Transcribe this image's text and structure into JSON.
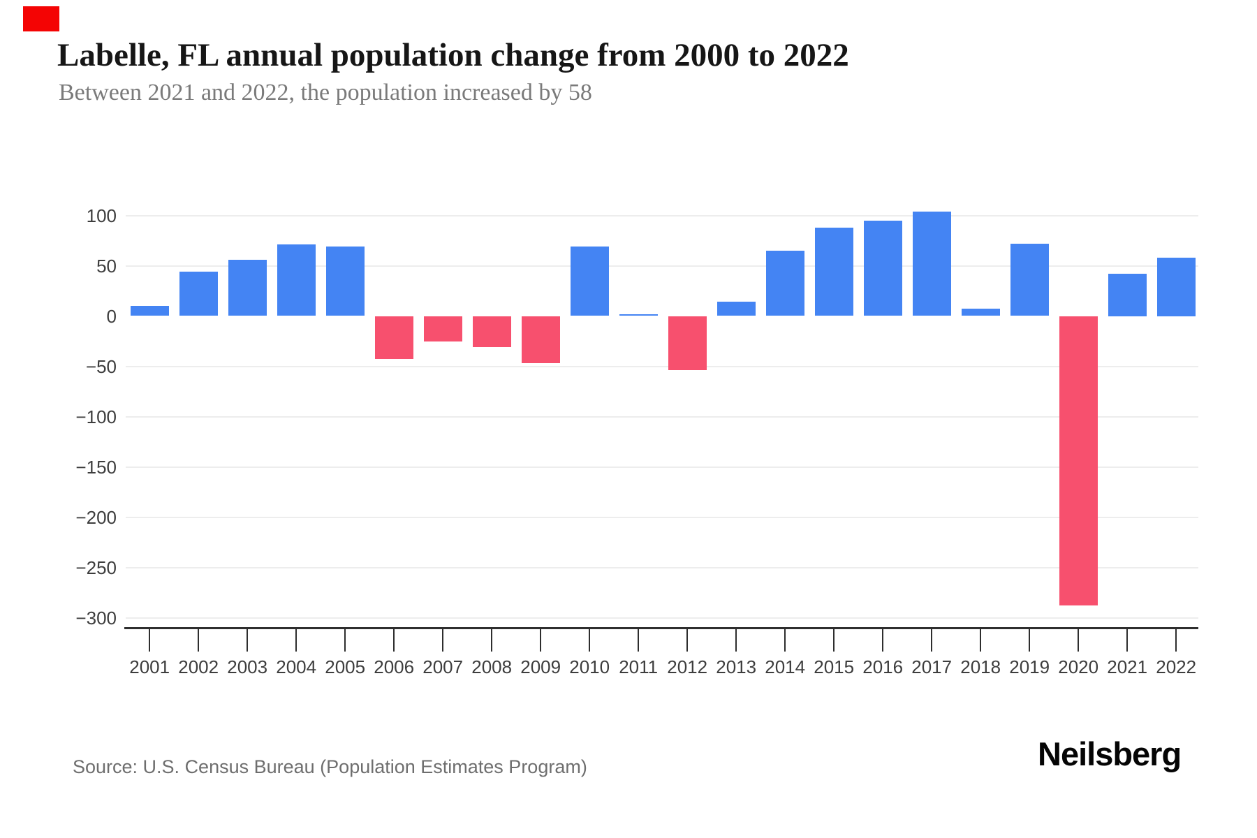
{
  "brand": {
    "logo_text": "Neilsberg",
    "accent_square_color": "#f40404"
  },
  "header": {
    "title": "Labelle, FL annual population change from 2000 to 2022",
    "subtitle": "Between 2021 and 2022, the population increased by 58"
  },
  "footer": {
    "source": "Source: U.S. Census Bureau (Population Estimates Program)"
  },
  "chart_data": {
    "type": "bar",
    "title": "Labelle, FL annual population change from 2000 to 2022",
    "series_name": "Annual population change",
    "categories": [
      "2001",
      "2002",
      "2003",
      "2004",
      "2005",
      "2006",
      "2007",
      "2008",
      "2009",
      "2010",
      "2011",
      "2012",
      "2013",
      "2014",
      "2015",
      "2016",
      "2017",
      "2018",
      "2019",
      "2020",
      "2021",
      "2022"
    ],
    "values": [
      10,
      44,
      56,
      71,
      69,
      -43,
      -25,
      -31,
      -47,
      69,
      2,
      -54,
      14,
      65,
      88,
      95,
      104,
      7,
      72,
      -288,
      42,
      58
    ],
    "positive_color": "#4484f3",
    "negative_color": "#f7506e",
    "grid_color": "#ededed",
    "axis_color": "#2e2e2e",
    "tick_label_color": "#3d3d3d",
    "y_ticks": [
      100,
      50,
      0,
      -50,
      -100,
      -150,
      -200,
      -250,
      -300
    ],
    "y_gridlines": [
      100,
      50,
      -50,
      -100,
      -150,
      -200,
      -250,
      -300
    ],
    "ylim": [
      -310,
      110
    ],
    "grid": true,
    "legend": "none",
    "xlabel": "",
    "ylabel": ""
  }
}
